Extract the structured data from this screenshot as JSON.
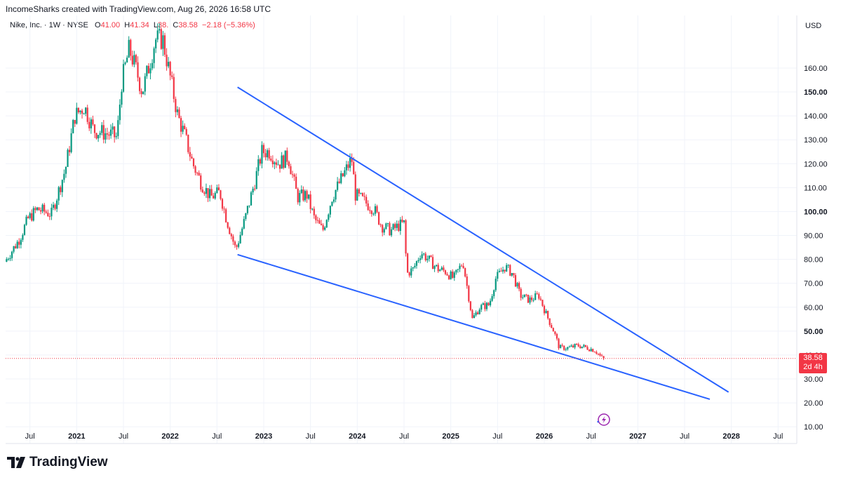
{
  "header": {
    "credit": "IncomeSharks created with TradingView.com, Aug 26, 2026 16:58 UTC"
  },
  "legend": {
    "symbol": "Nike, Inc. · 1W · NYSE",
    "o_label": "O",
    "o_value": "41.00",
    "h_label": "H",
    "h_value": "41.34",
    "l_label": "L",
    "l_value": "38.",
    "c_label": "C",
    "c_value": "38.58",
    "change": "−2.18 (−5.36%)"
  },
  "price_axis": {
    "currency": "USD",
    "last_price": "38.58",
    "countdown": "2d 4h"
  },
  "footer": {
    "brand": "TradingView"
  },
  "colors": {
    "up": "#089981",
    "down": "#f23645",
    "trendline": "#2962ff",
    "grid": "#f0f3fa",
    "last_price_line": "#f23645"
  },
  "chart_data": {
    "type": "candlestick",
    "ylim": [
      3,
      182
    ],
    "y_ticks": [
      {
        "v": 10,
        "label": "10.00",
        "bold": false
      },
      {
        "v": 20,
        "label": "20.00",
        "bold": false
      },
      {
        "v": 30,
        "label": "30.00",
        "bold": false
      },
      {
        "v": 40,
        "label": "40.00",
        "bold": false
      },
      {
        "v": 50,
        "label": "50.00",
        "bold": true
      },
      {
        "v": 60,
        "label": "60.00",
        "bold": false
      },
      {
        "v": 70,
        "label": "70.00",
        "bold": false
      },
      {
        "v": 80,
        "label": "80.00",
        "bold": false
      },
      {
        "v": 90,
        "label": "90.00",
        "bold": false
      },
      {
        "v": 100,
        "label": "100.00",
        "bold": true
      },
      {
        "v": 110,
        "label": "110.00",
        "bold": false
      },
      {
        "v": 120,
        "label": "120.00",
        "bold": false
      },
      {
        "v": 130,
        "label": "130.00",
        "bold": false
      },
      {
        "v": 140,
        "label": "140.00",
        "bold": false
      },
      {
        "v": 150,
        "label": "150.00",
        "bold": true
      },
      {
        "v": 160,
        "label": "160.00",
        "bold": false
      }
    ],
    "x_ticks": [
      {
        "t": 2020.5,
        "label": "Jul",
        "bold": false
      },
      {
        "t": 2021.0,
        "label": "2021",
        "bold": true
      },
      {
        "t": 2021.5,
        "label": "Jul",
        "bold": false
      },
      {
        "t": 2022.0,
        "label": "2022",
        "bold": true
      },
      {
        "t": 2022.5,
        "label": "Jul",
        "bold": false
      },
      {
        "t": 2023.0,
        "label": "2023",
        "bold": true
      },
      {
        "t": 2023.5,
        "label": "Jul",
        "bold": false
      },
      {
        "t": 2024.0,
        "label": "2024",
        "bold": true
      },
      {
        "t": 2024.5,
        "label": "Jul",
        "bold": false
      },
      {
        "t": 2025.0,
        "label": "2025",
        "bold": true
      },
      {
        "t": 2025.5,
        "label": "Jul",
        "bold": false
      },
      {
        "t": 2026.0,
        "label": "2026",
        "bold": true
      },
      {
        "t": 2026.5,
        "label": "Jul",
        "bold": false
      },
      {
        "t": 2027.0,
        "label": "2027",
        "bold": true
      },
      {
        "t": 2027.5,
        "label": "Jul",
        "bold": false
      },
      {
        "t": 2028.0,
        "label": "2028",
        "bold": true
      },
      {
        "t": 2028.5,
        "label": "Jul",
        "bold": false
      }
    ],
    "price_path": [
      [
        2020.25,
        79
      ],
      [
        2020.4,
        88
      ],
      [
        2020.5,
        97
      ],
      [
        2020.6,
        101
      ],
      [
        2020.75,
        99
      ],
      [
        2020.9,
        118
      ],
      [
        2021.0,
        140
      ],
      [
        2021.1,
        144
      ],
      [
        2021.2,
        134
      ],
      [
        2021.3,
        133
      ],
      [
        2021.4,
        132
      ],
      [
        2021.45,
        131
      ],
      [
        2021.5,
        154
      ],
      [
        2021.58,
        168
      ],
      [
        2021.65,
        160
      ],
      [
        2021.72,
        150
      ],
      [
        2021.8,
        162
      ],
      [
        2021.86,
        172
      ],
      [
        2021.94,
        172
      ],
      [
        2022.0,
        160
      ],
      [
        2022.1,
        140
      ],
      [
        2022.18,
        131
      ],
      [
        2022.26,
        120
      ],
      [
        2022.35,
        112
      ],
      [
        2022.45,
        106
      ],
      [
        2022.55,
        108
      ],
      [
        2022.62,
        97
      ],
      [
        2022.72,
        84
      ],
      [
        2022.82,
        97
      ],
      [
        2022.92,
        112
      ],
      [
        2023.0,
        125
      ],
      [
        2023.08,
        125
      ],
      [
        2023.18,
        120
      ],
      [
        2023.28,
        123
      ],
      [
        2023.38,
        106
      ],
      [
        2023.48,
        107
      ],
      [
        2023.56,
        97
      ],
      [
        2023.65,
        92
      ],
      [
        2023.75,
        106
      ],
      [
        2023.88,
        116
      ],
      [
        2023.96,
        122
      ],
      [
        2024.0,
        107
      ],
      [
        2024.1,
        104
      ],
      [
        2024.2,
        101
      ],
      [
        2024.28,
        94
      ],
      [
        2024.38,
        92
      ],
      [
        2024.46,
        94
      ],
      [
        2024.52,
        95
      ],
      [
        2024.55,
        74
      ],
      [
        2024.62,
        76
      ],
      [
        2024.7,
        83
      ],
      [
        2024.78,
        80
      ],
      [
        2024.88,
        76
      ],
      [
        2024.96,
        75
      ],
      [
        2025.05,
        72
      ],
      [
        2025.15,
        79
      ],
      [
        2025.25,
        55
      ],
      [
        2025.33,
        60
      ],
      [
        2025.43,
        61
      ],
      [
        2025.5,
        72
      ],
      [
        2025.6,
        77
      ],
      [
        2025.68,
        74
      ],
      [
        2025.76,
        65
      ],
      [
        2025.86,
        63
      ],
      [
        2025.96,
        65
      ],
      [
        2026.04,
        57
      ],
      [
        2026.12,
        50
      ],
      [
        2026.18,
        43
      ],
      [
        2026.28,
        43
      ],
      [
        2026.38,
        44
      ],
      [
        2026.48,
        43
      ],
      [
        2026.56,
        42
      ],
      [
        2026.64,
        38.58
      ]
    ],
    "trendlines": [
      {
        "name": "upper",
        "from": [
          2022.72,
          152
        ],
        "to": [
          2027.97,
          24.5
        ]
      },
      {
        "name": "lower",
        "from": [
          2022.72,
          82
        ],
        "to": [
          2027.77,
          21.5
        ]
      }
    ],
    "last_price": 38.58
  }
}
